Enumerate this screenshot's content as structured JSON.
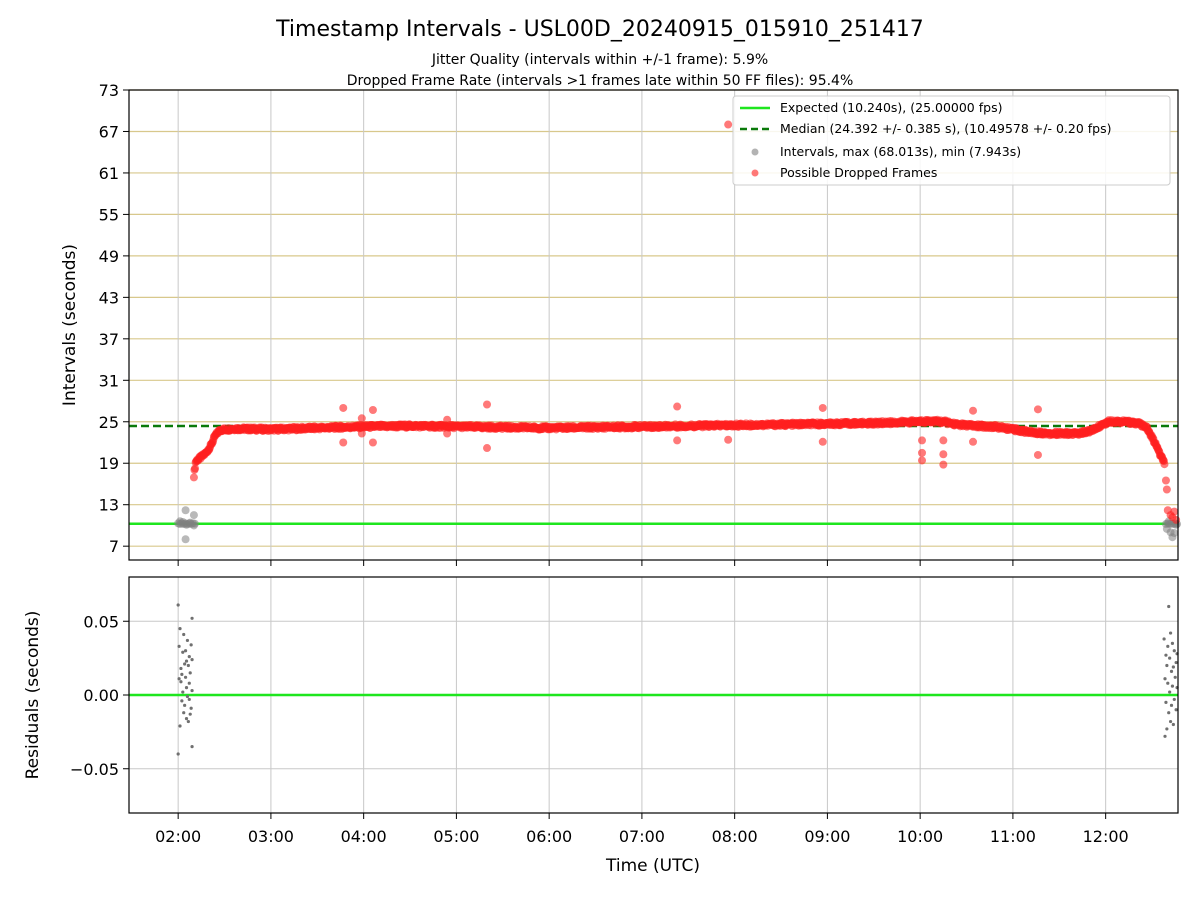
{
  "chart_data": [
    {
      "type": "scatter",
      "title": "Timestamp Intervals - USL00D_20240915_015910_251417",
      "subtitle_lines": [
        "Jitter Quality (intervals within +/-1 frame): 5.9%",
        "Dropped Frame Rate (intervals >1 frames late within 50 FF files): 95.4%"
      ],
      "xlabel": "",
      "ylabel": "Intervals (seconds)",
      "x_unit": "hours UTC",
      "xlim": [
        1.47,
        12.78
      ],
      "ylim": [
        5,
        73
      ],
      "yticks": [
        7,
        13,
        19,
        25,
        31,
        37,
        43,
        49,
        55,
        61,
        67,
        73
      ],
      "xticks": [
        2,
        3,
        4,
        5,
        6,
        7,
        8,
        9,
        10,
        11,
        12
      ],
      "xtick_labels": [
        "02:00",
        "03:00",
        "04:00",
        "05:00",
        "06:00",
        "07:00",
        "08:00",
        "09:00",
        "10:00",
        "11:00",
        "12:00"
      ],
      "grid": true,
      "legend_position": "top-right",
      "reference_lines": [
        {
          "name": "Expected (10.240s), (25.00000 fps)",
          "y": 10.24,
          "color": "#1ee61e",
          "style": "solid"
        },
        {
          "name": "Median (24.392 +/- 0.385 s), (10.49578 +/- 0.20 fps)",
          "y": 24.392,
          "color": "#0a7a0a",
          "style": "dashed"
        }
      ],
      "series": [
        {
          "name": "Intervals, max (68.013s), min (7.943s)",
          "color": "#808080",
          "points": [
            [
              2.0,
              10.3
            ],
            [
              2.02,
              10.2
            ],
            [
              2.04,
              10.3
            ],
            [
              2.06,
              10.2
            ],
            [
              2.08,
              10.3
            ],
            [
              2.1,
              10.2
            ],
            [
              2.12,
              10.3
            ],
            [
              2.14,
              10.2
            ],
            [
              2.16,
              10.3
            ],
            [
              2.18,
              10.25
            ],
            [
              2.05,
              10.5
            ],
            [
              2.09,
              10.1
            ],
            [
              2.13,
              10.4
            ],
            [
              2.17,
              10.0
            ],
            [
              2.08,
              12.2
            ],
            [
              2.17,
              11.5
            ],
            [
              2.08,
              8.0
            ],
            [
              2.02,
              10.6
            ],
            [
              12.65,
              10.2
            ],
            [
              12.67,
              10.3
            ],
            [
              12.69,
              10.2
            ],
            [
              12.71,
              10.3
            ],
            [
              12.73,
              10.2
            ],
            [
              12.75,
              10.3
            ],
            [
              12.77,
              10.2
            ],
            [
              12.66,
              9.5
            ],
            [
              12.7,
              9.0
            ],
            [
              12.72,
              8.3
            ],
            [
              12.74,
              8.9
            ],
            [
              12.68,
              10.6
            ],
            [
              12.76,
              10.1
            ]
          ]
        },
        {
          "name": "Possible Dropped Frames",
          "color": "#ff2020",
          "anchors": [
            [
              2.17,
              17.2
            ],
            [
              2.19,
              19.3
            ],
            [
              2.25,
              19.9
            ],
            [
              2.3,
              20.5
            ],
            [
              2.35,
              21.5
            ],
            [
              2.4,
              23.0
            ],
            [
              2.45,
              23.8
            ],
            [
              2.6,
              24.0
            ],
            [
              3.0,
              23.9
            ],
            [
              3.5,
              24.1
            ],
            [
              4.0,
              24.3
            ],
            [
              4.5,
              24.4
            ],
            [
              5.0,
              24.3
            ],
            [
              5.5,
              24.2
            ],
            [
              6.0,
              24.1
            ],
            [
              6.5,
              24.2
            ],
            [
              7.0,
              24.3
            ],
            [
              7.5,
              24.4
            ],
            [
              8.0,
              24.5
            ],
            [
              8.5,
              24.6
            ],
            [
              9.0,
              24.7
            ],
            [
              9.5,
              24.8
            ],
            [
              9.75,
              24.9
            ],
            [
              9.95,
              25.0
            ],
            [
              10.1,
              25.1
            ],
            [
              10.25,
              25.0
            ],
            [
              10.4,
              24.6
            ],
            [
              10.6,
              24.4
            ],
            [
              10.8,
              24.3
            ],
            [
              11.0,
              23.9
            ],
            [
              11.2,
              23.5
            ],
            [
              11.4,
              23.3
            ],
            [
              11.7,
              23.3
            ],
            [
              11.85,
              23.7
            ],
            [
              11.95,
              24.5
            ],
            [
              12.05,
              25.1
            ],
            [
              12.2,
              25.0
            ],
            [
              12.35,
              24.8
            ],
            [
              12.45,
              24.0
            ],
            [
              12.52,
              22.2
            ],
            [
              12.58,
              20.5
            ],
            [
              12.62,
              19.3
            ],
            [
              12.64,
              19.0
            ]
          ],
          "outliers": [
            [
              3.78,
              27.0
            ],
            [
              3.78,
              22.0
            ],
            [
              3.98,
              25.5
            ],
            [
              3.98,
              23.3
            ],
            [
              4.1,
              26.7
            ],
            [
              4.1,
              22.0
            ],
            [
              4.9,
              25.3
            ],
            [
              4.9,
              23.3
            ],
            [
              5.33,
              27.5
            ],
            [
              5.33,
              21.2
            ],
            [
              7.38,
              27.2
            ],
            [
              7.38,
              22.3
            ],
            [
              7.93,
              68.0
            ],
            [
              7.93,
              22.4
            ],
            [
              8.95,
              27.0
            ],
            [
              8.95,
              22.1
            ],
            [
              10.02,
              22.3
            ],
            [
              10.02,
              20.5
            ],
            [
              10.02,
              19.4
            ],
            [
              10.25,
              22.3
            ],
            [
              10.25,
              20.3
            ],
            [
              10.25,
              18.8
            ],
            [
              10.57,
              26.6
            ],
            [
              10.57,
              22.1
            ],
            [
              11.27,
              26.8
            ],
            [
              11.27,
              20.2
            ],
            [
              12.65,
              16.5
            ],
            [
              12.66,
              15.2
            ],
            [
              12.67,
              12.2
            ],
            [
              12.7,
              11.5
            ],
            [
              12.72,
              11.2
            ],
            [
              12.74,
              12.0
            ],
            [
              12.76,
              10.8
            ]
          ]
        }
      ]
    },
    {
      "type": "scatter",
      "title": "",
      "xlabel": "Time (UTC)",
      "ylabel": "Residuals (seconds)",
      "xlim": [
        1.47,
        12.78
      ],
      "ylim": [
        -0.08,
        0.08
      ],
      "yticks": [
        -0.05,
        0.0,
        0.05
      ],
      "ytick_labels": [
        "−0.05",
        "0.00",
        "0.05"
      ],
      "xticks": [
        2,
        3,
        4,
        5,
        6,
        7,
        8,
        9,
        10,
        11,
        12
      ],
      "xtick_labels": [
        "02:00",
        "03:00",
        "04:00",
        "05:00",
        "06:00",
        "07:00",
        "08:00",
        "09:00",
        "10:00",
        "11:00",
        "12:00"
      ],
      "grid": true,
      "zero_line": {
        "y": 0,
        "color": "#1ee61e"
      },
      "series": [
        {
          "color": "#707070",
          "points": [
            [
              2.0,
              0.061
            ],
            [
              2.0,
              -0.04
            ],
            [
              2.01,
              0.033
            ],
            [
              2.02,
              0.045
            ],
            [
              2.02,
              -0.021
            ],
            [
              2.03,
              0.018
            ],
            [
              2.03,
              0.009
            ],
            [
              2.04,
              -0.004
            ],
            [
              2.05,
              0.029
            ],
            [
              2.05,
              0.002
            ],
            [
              2.06,
              0.041
            ],
            [
              2.06,
              -0.012
            ],
            [
              2.07,
              0.021
            ],
            [
              2.07,
              -0.007
            ],
            [
              2.08,
              0.03
            ],
            [
              2.08,
              0.012
            ],
            [
              2.09,
              -0.016
            ],
            [
              2.09,
              0.005
            ],
            [
              2.1,
              0.037
            ],
            [
              2.1,
              -0.001
            ],
            [
              2.11,
              0.02
            ],
            [
              2.11,
              -0.018
            ],
            [
              2.12,
              0.026
            ],
            [
              2.12,
              0.008
            ],
            [
              2.13,
              -0.013
            ],
            [
              2.13,
              0.015
            ],
            [
              2.14,
              0.034
            ],
            [
              2.14,
              -0.009
            ],
            [
              2.15,
              0.052
            ],
            [
              2.15,
              -0.035
            ],
            [
              2.15,
              0.024
            ],
            [
              2.15,
              0.003
            ],
            [
              2.01,
              0.011
            ],
            [
              2.04,
              0.014
            ],
            [
              2.09,
              0.023
            ],
            [
              2.12,
              -0.003
            ],
            [
              12.63,
              0.038
            ],
            [
              12.64,
              -0.028
            ],
            [
              12.64,
              0.011
            ],
            [
              12.65,
              0.027
            ],
            [
              12.65,
              -0.005
            ],
            [
              12.66,
              0.02
            ],
            [
              12.66,
              -0.023
            ],
            [
              12.67,
              0.033
            ],
            [
              12.67,
              0.008
            ],
            [
              12.68,
              0.06
            ],
            [
              12.68,
              -0.012
            ],
            [
              12.69,
              0.025
            ],
            [
              12.69,
              0.002
            ],
            [
              12.7,
              0.042
            ],
            [
              12.7,
              -0.018
            ],
            [
              12.71,
              0.016
            ],
            [
              12.71,
              -0.007
            ],
            [
              12.72,
              0.035
            ],
            [
              12.72,
              0.006
            ],
            [
              12.73,
              -0.02
            ],
            [
              12.73,
              0.019
            ],
            [
              12.74,
              0.03
            ],
            [
              12.74,
              -0.003
            ],
            [
              12.75,
              0.012
            ],
            [
              12.76,
              0.022
            ],
            [
              12.76,
              -0.01
            ],
            [
              12.77,
              0.005
            ],
            [
              12.77,
              0.028
            ]
          ]
        }
      ]
    }
  ]
}
